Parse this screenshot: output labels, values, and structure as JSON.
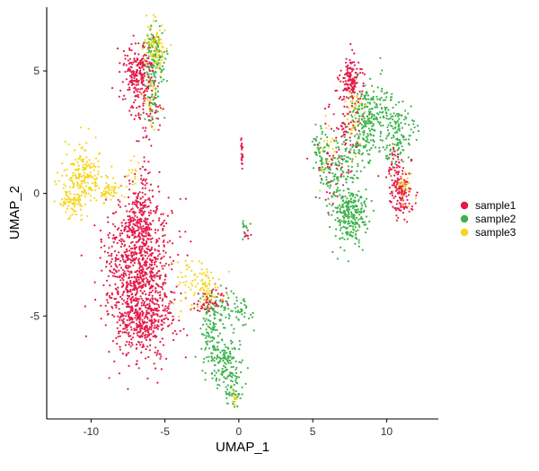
{
  "chart_data": {
    "type": "scatter",
    "title": "",
    "xlabel": "UMAP_1",
    "ylabel": "UMAP_2",
    "xlim": [
      -13,
      13.5
    ],
    "ylim": [
      -9.2,
      7.6
    ],
    "xticks": [
      -10,
      -5,
      0,
      5,
      10
    ],
    "yticks": [
      -5,
      0,
      5
    ],
    "xtick_labels": [
      "-10",
      "-5",
      "0",
      "5",
      "10"
    ],
    "ytick_labels": [
      "-5",
      "0",
      "5"
    ],
    "grid": false,
    "legend_position": "right",
    "series": [
      {
        "name": "sample1",
        "color": "#E41A4A",
        "clusters": [
          {
            "cx": -6.8,
            "cy": -3.2,
            "sx": 1.1,
            "sy": 1.6,
            "n": 900
          },
          {
            "cx": -6.6,
            "cy": -1.0,
            "sx": 0.5,
            "sy": 1.0,
            "n": 180
          },
          {
            "cx": -6.2,
            "cy": -5.3,
            "sx": 1.0,
            "sy": 0.6,
            "n": 250
          },
          {
            "cx": -6.8,
            "cy": 4.9,
            "sx": 0.55,
            "sy": 0.6,
            "n": 220
          },
          {
            "cx": -6.2,
            "cy": 3.3,
            "sx": 0.5,
            "sy": 0.5,
            "n": 60
          },
          {
            "cx": 7.6,
            "cy": 4.7,
            "sx": 0.35,
            "sy": 0.5,
            "n": 140
          },
          {
            "cx": 7.2,
            "cy": 2.9,
            "sx": 0.6,
            "sy": 0.6,
            "n": 60
          },
          {
            "cx": 11.0,
            "cy": 0.0,
            "sx": 0.35,
            "sy": 0.5,
            "n": 140
          },
          {
            "cx": 10.6,
            "cy": 1.1,
            "sx": 0.3,
            "sy": 0.4,
            "n": 40
          },
          {
            "cx": 6.3,
            "cy": 0.9,
            "sx": 0.6,
            "sy": 0.7,
            "n": 40
          },
          {
            "cx": -2.0,
            "cy": -4.4,
            "sx": 0.6,
            "sy": 0.3,
            "n": 60
          },
          {
            "cx": 0.2,
            "cy": 1.6,
            "sx": 0.04,
            "sy": 0.35,
            "n": 20
          },
          {
            "cx": 0.5,
            "cy": -1.7,
            "sx": 0.15,
            "sy": 0.15,
            "n": 8
          }
        ]
      },
      {
        "name": "sample2",
        "color": "#3CB34A",
        "clusters": [
          {
            "cx": 7.6,
            "cy": -0.9,
            "sx": 0.55,
            "sy": 0.6,
            "n": 220
          },
          {
            "cx": 6.9,
            "cy": 0.7,
            "sx": 0.7,
            "sy": 0.9,
            "n": 160
          },
          {
            "cx": 5.6,
            "cy": 1.6,
            "sx": 0.35,
            "sy": 0.5,
            "n": 60
          },
          {
            "cx": 9.0,
            "cy": 3.4,
            "sx": 0.7,
            "sy": 0.6,
            "n": 160
          },
          {
            "cx": 10.6,
            "cy": 2.4,
            "sx": 0.6,
            "sy": 0.6,
            "n": 140
          },
          {
            "cx": 8.4,
            "cy": 2.4,
            "sx": 0.5,
            "sy": 0.6,
            "n": 80
          },
          {
            "cx": -5.7,
            "cy": 5.5,
            "sx": 0.35,
            "sy": 0.6,
            "n": 130
          },
          {
            "cx": -5.8,
            "cy": 3.8,
            "sx": 0.3,
            "sy": 0.5,
            "n": 40
          },
          {
            "cx": -1.0,
            "cy": -6.9,
            "sx": 0.6,
            "sy": 0.5,
            "n": 150
          },
          {
            "cx": -1.8,
            "cy": -5.6,
            "sx": 0.4,
            "sy": 0.6,
            "n": 80
          },
          {
            "cx": -0.4,
            "cy": -8.0,
            "sx": 0.35,
            "sy": 0.35,
            "n": 50
          },
          {
            "cx": -1.2,
            "cy": -4.8,
            "sx": 0.9,
            "sy": 0.4,
            "n": 60
          },
          {
            "cx": 0.3,
            "cy": -4.9,
            "sx": 0.35,
            "sy": 0.4,
            "n": 25
          },
          {
            "cx": 0.4,
            "cy": -1.5,
            "sx": 0.2,
            "sy": 0.3,
            "n": 12
          }
        ]
      },
      {
        "name": "sample3",
        "color": "#F7D51C",
        "clusters": [
          {
            "cx": -10.6,
            "cy": 0.7,
            "sx": 0.7,
            "sy": 0.6,
            "n": 200
          },
          {
            "cx": -11.3,
            "cy": -0.4,
            "sx": 0.4,
            "sy": 0.25,
            "n": 50
          },
          {
            "cx": -8.8,
            "cy": 0.1,
            "sx": 0.6,
            "sy": 0.2,
            "n": 50
          },
          {
            "cx": -5.6,
            "cy": 6.0,
            "sx": 0.35,
            "sy": 0.5,
            "n": 100
          },
          {
            "cx": -6.0,
            "cy": 3.9,
            "sx": 0.35,
            "sy": 0.5,
            "n": 30
          },
          {
            "cx": -7.2,
            "cy": 0.9,
            "sx": 0.3,
            "sy": 0.4,
            "n": 15
          },
          {
            "cx": -2.5,
            "cy": -3.7,
            "sx": 0.8,
            "sy": 0.5,
            "n": 110
          },
          {
            "cx": -0.3,
            "cy": -8.4,
            "sx": 0.15,
            "sy": 0.2,
            "n": 12
          },
          {
            "cx": 7.9,
            "cy": 3.2,
            "sx": 0.3,
            "sy": 0.8,
            "n": 40
          },
          {
            "cx": 11.2,
            "cy": 0.3,
            "sx": 0.3,
            "sy": 0.35,
            "n": 30
          },
          {
            "cx": 5.9,
            "cy": 1.9,
            "sx": 0.3,
            "sy": 0.5,
            "n": 20
          }
        ]
      }
    ]
  }
}
